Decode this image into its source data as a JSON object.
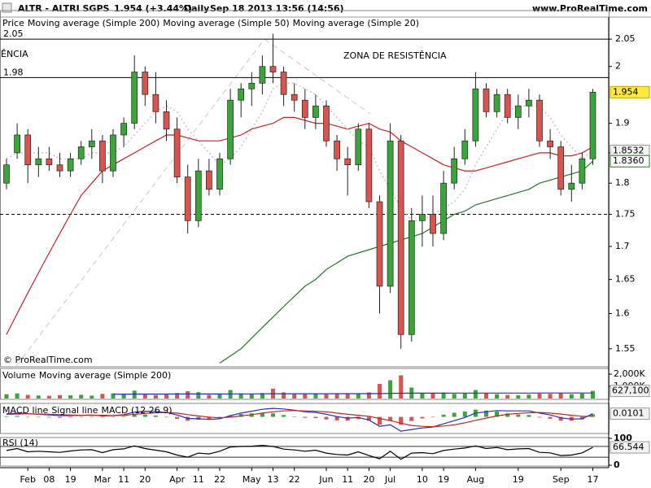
{
  "header": {
    "symbol": "ALTR - ALTRI SGPS",
    "price": "1.954 (+3.44%)",
    "period": "Daily",
    "datetime": "Sep 18 2013 13:56 (14:56)",
    "site": "www.ProRealTime.com",
    "copyright": "© ProRealTime.com"
  },
  "chart_data": [
    {
      "type": "candlestick",
      "legend_price": "Price",
      "categories": [
        null,
        null,
        "Feb",
        null,
        "08",
        null,
        "19",
        null,
        null,
        "Mar",
        null,
        "11",
        null,
        "20",
        null,
        null,
        "Apr",
        null,
        "11",
        null,
        "22",
        null,
        null,
        "May",
        null,
        "13",
        null,
        "22",
        null,
        null,
        "Jun",
        null,
        "11",
        null,
        "20",
        null,
        "Jul",
        null,
        null,
        "10",
        null,
        "19",
        null,
        null,
        "Aug",
        null,
        null,
        null,
        "19",
        null,
        null,
        null,
        "Sep",
        null,
        null,
        "17"
      ],
      "open": [
        1.8,
        1.85,
        1.88,
        1.83,
        1.84,
        1.83,
        1.82,
        1.84,
        1.86,
        1.87,
        1.82,
        1.88,
        1.9,
        1.99,
        1.95,
        1.92,
        1.89,
        1.81,
        1.74,
        1.82,
        1.79,
        1.84,
        1.94,
        1.96,
        1.97,
        2.0,
        1.99,
        1.95,
        1.94,
        1.91,
        1.93,
        1.87,
        1.84,
        1.83,
        1.89,
        1.77,
        1.64,
        1.87,
        1.57,
        1.74,
        1.75,
        1.72,
        1.8,
        1.84,
        1.87,
        1.96,
        1.92,
        1.95,
        1.91,
        1.93,
        1.94,
        1.87,
        1.86,
        1.79,
        1.8,
        1.84
      ],
      "high": [
        1.84,
        1.9,
        1.89,
        1.86,
        1.86,
        1.85,
        1.85,
        1.87,
        1.89,
        1.88,
        1.89,
        1.91,
        2.02,
        2.0,
        1.99,
        1.94,
        1.91,
        1.83,
        1.84,
        1.84,
        1.85,
        1.96,
        1.97,
        1.99,
        2.02,
        2.06,
        2.0,
        1.97,
        1.96,
        1.95,
        1.94,
        1.88,
        1.86,
        1.9,
        1.9,
        1.78,
        1.9,
        1.88,
        1.76,
        1.78,
        1.78,
        1.82,
        1.86,
        1.89,
        1.99,
        1.97,
        1.96,
        1.96,
        1.95,
        1.96,
        1.95,
        1.89,
        1.87,
        1.83,
        1.85,
        1.96
      ],
      "low": [
        1.79,
        1.84,
        1.8,
        1.81,
        1.82,
        1.81,
        1.81,
        1.83,
        1.84,
        1.8,
        1.81,
        1.86,
        1.89,
        1.93,
        1.9,
        1.87,
        1.8,
        1.72,
        1.73,
        1.78,
        1.78,
        1.83,
        1.91,
        1.93,
        1.95,
        1.97,
        1.93,
        1.92,
        1.89,
        1.89,
        1.86,
        1.82,
        1.78,
        1.82,
        1.76,
        1.6,
        1.63,
        1.55,
        1.56,
        1.7,
        1.7,
        1.71,
        1.79,
        1.83,
        1.86,
        1.91,
        1.91,
        1.9,
        1.89,
        1.91,
        1.86,
        1.84,
        1.78,
        1.77,
        1.79,
        1.83
      ],
      "close": [
        1.83,
        1.88,
        1.83,
        1.84,
        1.83,
        1.82,
        1.84,
        1.86,
        1.87,
        1.82,
        1.88,
        1.9,
        1.99,
        1.95,
        1.92,
        1.89,
        1.81,
        1.74,
        1.82,
        1.79,
        1.84,
        1.94,
        1.96,
        1.97,
        2.0,
        1.99,
        1.95,
        1.94,
        1.91,
        1.93,
        1.87,
        1.84,
        1.83,
        1.89,
        1.77,
        1.64,
        1.87,
        1.57,
        1.74,
        1.75,
        1.72,
        1.8,
        1.84,
        1.87,
        1.96,
        1.92,
        1.95,
        1.91,
        1.93,
        1.94,
        1.87,
        1.86,
        1.79,
        1.8,
        1.84,
        1.954
      ],
      "up_color": "#3aa63a",
      "down_color": "#d9534f",
      "series": [
        {
          "name": "Moving average (Simple 200)",
          "color": "#207a20",
          "last_value_label": "1.8360",
          "values": [
            null,
            null,
            null,
            null,
            null,
            null,
            null,
            null,
            null,
            null,
            null,
            null,
            null,
            null,
            null,
            null,
            null,
            null,
            null,
            null,
            1.53,
            1.54,
            1.55,
            1.565,
            1.58,
            1.595,
            1.61,
            1.625,
            1.64,
            1.65,
            1.665,
            1.675,
            1.685,
            1.69,
            1.695,
            1.7,
            1.705,
            1.71,
            1.715,
            1.72,
            1.73,
            1.74,
            1.75,
            1.755,
            1.765,
            1.77,
            1.775,
            1.78,
            1.785,
            1.79,
            1.8,
            1.805,
            1.81,
            1.815,
            1.82,
            1.836
          ]
        },
        {
          "name": "Moving average (Simple 50)",
          "color": "#cc2222",
          "values": [
            1.57,
            1.6,
            1.63,
            1.66,
            1.69,
            1.72,
            1.75,
            1.78,
            1.8,
            1.82,
            1.83,
            1.84,
            1.85,
            1.86,
            1.87,
            1.88,
            1.88,
            1.875,
            1.87,
            1.87,
            1.87,
            1.875,
            1.88,
            1.89,
            1.895,
            1.9,
            1.91,
            1.91,
            1.905,
            1.9,
            1.9,
            1.895,
            1.89,
            1.895,
            1.9,
            1.89,
            1.885,
            1.87,
            1.86,
            1.85,
            1.84,
            1.83,
            1.825,
            1.82,
            1.82,
            1.825,
            1.83,
            1.835,
            1.84,
            1.845,
            1.85,
            1.85,
            1.845,
            1.845,
            1.85,
            1.86
          ]
        },
        {
          "name": "Moving average (Simple 20)",
          "color": "#b8b8b8",
          "values": [
            1.84,
            1.85,
            1.85,
            1.85,
            1.85,
            1.84,
            1.84,
            1.84,
            1.85,
            1.85,
            1.85,
            1.86,
            1.88,
            1.9,
            1.92,
            1.93,
            1.92,
            1.89,
            1.87,
            1.85,
            1.83,
            1.84,
            1.86,
            1.89,
            1.92,
            1.96,
            1.97,
            1.97,
            1.96,
            1.95,
            1.93,
            1.91,
            1.89,
            1.87,
            1.86,
            1.82,
            1.79,
            1.76,
            1.74,
            1.74,
            1.75,
            1.76,
            1.77,
            1.79,
            1.83,
            1.86,
            1.89,
            1.92,
            1.93,
            1.93,
            1.93,
            1.91,
            1.88,
            1.86,
            1.84,
            1.8532
          ]
        }
      ],
      "log_scale": true,
      "ylim": [
        1.526,
        2.102
      ],
      "yticks": [
        2.05,
        2,
        1.9,
        1.85,
        1.8,
        1.75,
        1.7,
        1.65,
        1.6,
        1.55
      ],
      "levels": [
        2.05,
        1.98
      ],
      "support_level": 1.75,
      "annotations": [
        "ZONA DE RESISTÊNCIA",
        "ÊNCIA"
      ]
    },
    {
      "type": "bar",
      "title": "Volume",
      "last_value_label": "627,100",
      "values": [
        350000,
        420000,
        300000,
        250000,
        220000,
        280000,
        260000,
        310000,
        240000,
        380000,
        420000,
        360000,
        650000,
        380000,
        290000,
        330000,
        450000,
        600000,
        520000,
        300000,
        340000,
        700000,
        420000,
        380000,
        450000,
        800000,
        500000,
        360000,
        420000,
        380000,
        350000,
        400000,
        380000,
        420000,
        500000,
        1200000,
        1500000,
        1900000,
        900000,
        450000,
        420000,
        500000,
        380000,
        450000,
        700000,
        420000,
        360000,
        300000,
        280000,
        320000,
        400000,
        380000,
        450000,
        350000,
        400000,
        627100
      ],
      "series": [
        {
          "name": "Moving average (Simple 200)",
          "color": "#2030c0",
          "values": [
            null,
            null,
            null,
            null,
            null,
            null,
            null,
            null,
            null,
            null,
            360000,
            362000,
            365000,
            366000,
            367000,
            368000,
            370000,
            372000,
            374000,
            375000,
            376000,
            380000,
            382000,
            383000,
            385000,
            390000,
            392000,
            393000,
            394000,
            395000,
            396000,
            397000,
            398000,
            399000,
            400000,
            410000,
            420000,
            435000,
            440000,
            441000,
            442000,
            443000,
            444000,
            445000,
            448000,
            449000,
            450000,
            450000,
            450000,
            450000,
            451000,
            451000,
            452000,
            452000,
            452000,
            453000
          ]
        }
      ],
      "ylim": [
        0,
        2400000
      ],
      "yticks": [
        {
          "value": 2000000,
          "label": "2,000K"
        },
        {
          "value": 1000000,
          "label": "1,000K"
        }
      ]
    },
    {
      "type": "macd",
      "title": "MACD (12 26 9)",
      "series": [
        {
          "name": "MACD line",
          "color": "#2030c0",
          "values": [
            0.01,
            0.012,
            0.01,
            0.008,
            0.006,
            0.004,
            0.004,
            0.005,
            0.006,
            0.003,
            0.004,
            0.007,
            0.015,
            0.018,
            0.017,
            0.014,
            0.006,
            -0.005,
            -0.006,
            -0.008,
            -0.006,
            0.004,
            0.012,
            0.018,
            0.024,
            0.027,
            0.025,
            0.021,
            0.016,
            0.014,
            0.008,
            0.001,
            -0.004,
            -0.002,
            -0.01,
            -0.03,
            -0.025,
            -0.045,
            -0.04,
            -0.035,
            -0.032,
            -0.022,
            -0.012,
            -0.002,
            0.012,
            0.016,
            0.02,
            0.019,
            0.019,
            0.019,
            0.012,
            0.006,
            -0.003,
            -0.007,
            -0.006,
            0.0101
          ]
        },
        {
          "name": "Signal line",
          "color": "#cc2222",
          "values": [
            0.008,
            0.009,
            0.01,
            0.009,
            0.008,
            0.007,
            0.006,
            0.005,
            0.005,
            0.005,
            0.004,
            0.005,
            0.008,
            0.011,
            0.013,
            0.014,
            0.012,
            0.007,
            0.003,
            -0.001,
            -0.003,
            -0.001,
            0.003,
            0.007,
            0.012,
            0.016,
            0.019,
            0.02,
            0.019,
            0.018,
            0.016,
            0.012,
            0.008,
            0.005,
            0.002,
            -0.005,
            -0.012,
            -0.02,
            -0.027,
            -0.03,
            -0.031,
            -0.029,
            -0.025,
            -0.019,
            -0.011,
            -0.004,
            0.003,
            0.008,
            0.011,
            0.013,
            0.014,
            0.012,
            0.009,
            0.005,
            0.002,
            0.002
          ]
        }
      ],
      "histogram": [
        0.002,
        0.003,
        0,
        -0.001,
        -0.002,
        -0.003,
        -0.002,
        0,
        0.001,
        -0.002,
        0,
        0.002,
        0.007,
        0.007,
        0.004,
        0,
        -0.006,
        -0.012,
        -0.009,
        -0.007,
        -0.003,
        0.005,
        0.009,
        0.011,
        0.012,
        0.011,
        0.006,
        0.001,
        -0.003,
        -0.004,
        -0.008,
        -0.011,
        -0.012,
        -0.007,
        -0.012,
        -0.025,
        -0.013,
        -0.025,
        -0.013,
        -0.005,
        -0.001,
        0.007,
        0.013,
        0.017,
        0.023,
        0.02,
        0.017,
        0.011,
        0.008,
        0.006,
        -0.002,
        -0.006,
        -0.012,
        -0.012,
        -0.008,
        0.008
      ],
      "ylim": [
        -0.05,
        0.04
      ]
    },
    {
      "type": "line",
      "title": "RSI (14)",
      "color": "#000000",
      "values": [
        55,
        62,
        50,
        52,
        50,
        48,
        53,
        57,
        58,
        47,
        58,
        61,
        72,
        62,
        56,
        50,
        38,
        30,
        45,
        42,
        52,
        68,
        70,
        71,
        74,
        70,
        60,
        57,
        52,
        56,
        45,
        40,
        38,
        50,
        36,
        24,
        52,
        22,
        45,
        47,
        43,
        55,
        60,
        64,
        72,
        62,
        66,
        58,
        61,
        62,
        48,
        46,
        36,
        38,
        46,
        66.544
      ],
      "ylim": [
        0,
        100
      ],
      "yticks": [
        100,
        0
      ],
      "levels": [
        70,
        30
      ]
    }
  ]
}
